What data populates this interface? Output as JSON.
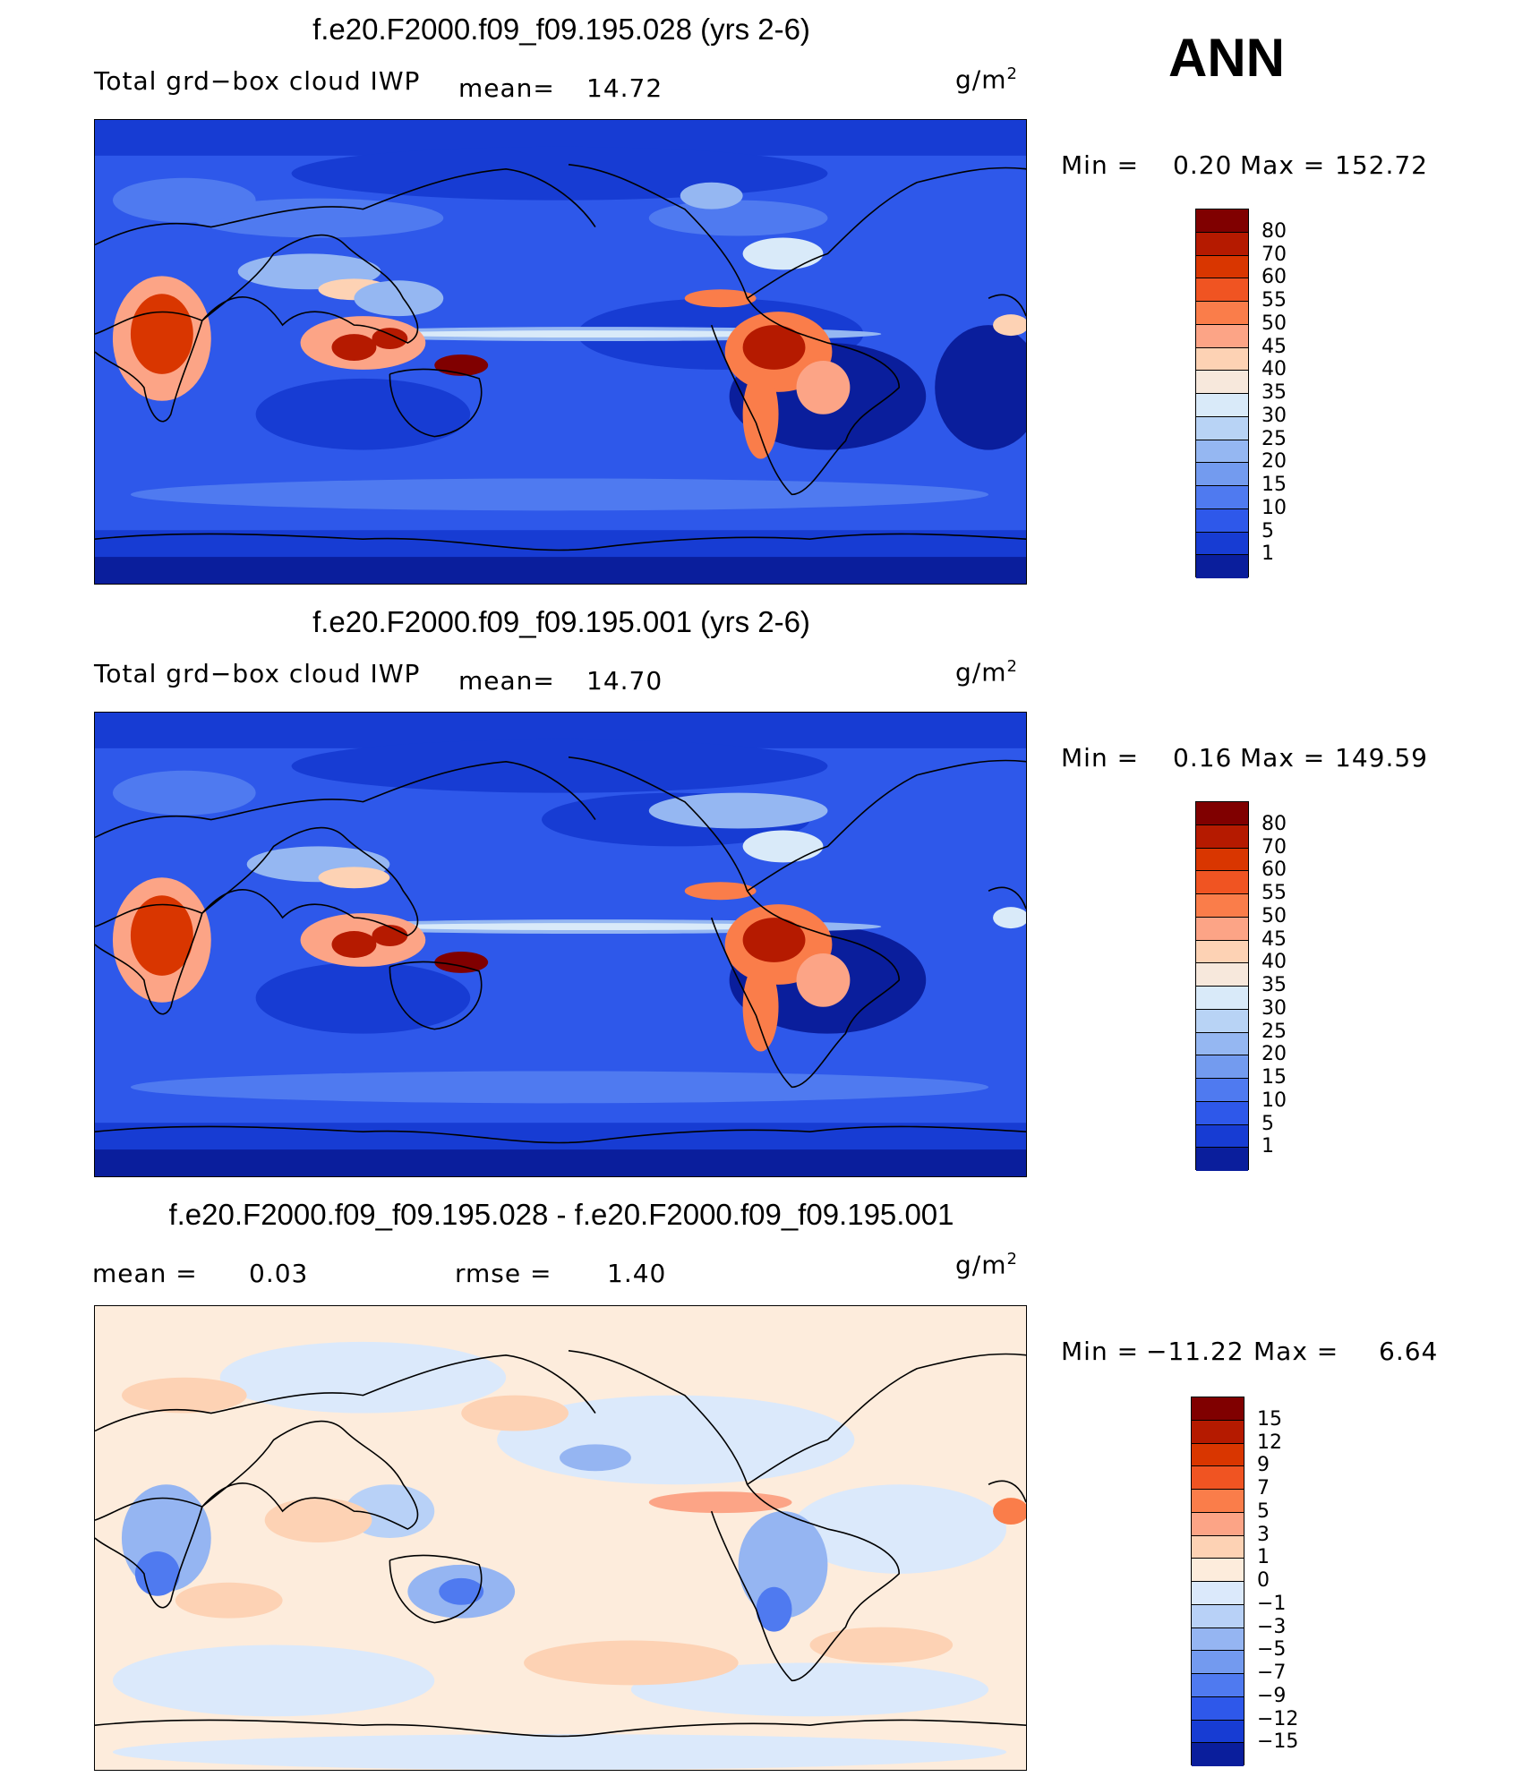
{
  "season": "ANN",
  "units": "g/m",
  "units_exp": "2",
  "panels": [
    {
      "title": "f.e20.F2000.f09_f09.195.028 (yrs 2-6)",
      "variable": "Total grd−box cloud IWP",
      "mean_label": "mean=",
      "mean": "14.72",
      "min_label": "Min =",
      "min": "0.20",
      "max_label": "Max =",
      "max": "152.72",
      "levels": [
        "80",
        "70",
        "60",
        "55",
        "50",
        "45",
        "40",
        "35",
        "30",
        "25",
        "20",
        "15",
        "10",
        "5",
        "1"
      ],
      "colors": [
        "#800000",
        "#b51a00",
        "#d93600",
        "#f05422",
        "#fa7d4a",
        "#fca486",
        "#fdd2b4",
        "#f7e8dc",
        "#d9eaf9",
        "#b8d3f5",
        "#95b7f2",
        "#739bef",
        "#4f7af0",
        "#2e58ea",
        "#173cd3",
        "#0a1e9c"
      ]
    },
    {
      "title": "f.e20.F2000.f09_f09.195.001 (yrs 2-6)",
      "variable": "Total grd−box cloud IWP",
      "mean_label": "mean=",
      "mean": "14.70",
      "min_label": "Min =",
      "min": "0.16",
      "max_label": "Max =",
      "max": "149.59",
      "levels": [
        "80",
        "70",
        "60",
        "55",
        "50",
        "45",
        "40",
        "35",
        "30",
        "25",
        "20",
        "15",
        "10",
        "5",
        "1"
      ],
      "colors": [
        "#800000",
        "#b51a00",
        "#d93600",
        "#f05422",
        "#fa7d4a",
        "#fca486",
        "#fdd2b4",
        "#f7e8dc",
        "#d9eaf9",
        "#b8d3f5",
        "#95b7f2",
        "#739bef",
        "#4f7af0",
        "#2e58ea",
        "#173cd3",
        "#0a1e9c"
      ]
    },
    {
      "title": "f.e20.F2000.f09_f09.195.028 - f.e20.F2000.f09_f09.195.001",
      "mean_label": "mean =",
      "mean": "0.03",
      "rmse_label": "rmse =",
      "rmse": "1.40",
      "min_label": "Min =",
      "min": "−11.22",
      "max_label": "Max =",
      "max": "6.64",
      "levels": [
        "15",
        "12",
        "9",
        "7",
        "5",
        "3",
        "1",
        "0",
        "−1",
        "−3",
        "−5",
        "−7",
        "−9",
        "−12",
        "−15"
      ],
      "colors": [
        "#800000",
        "#b51a00",
        "#d93600",
        "#f05422",
        "#fa7d4a",
        "#fca486",
        "#fdd2b4",
        "#fdecdc",
        "#dbe9fb",
        "#b8d1f7",
        "#95b5f2",
        "#739aef",
        "#4f7af0",
        "#2e58ea",
        "#173cd3",
        "#0a1e9c"
      ]
    }
  ]
}
